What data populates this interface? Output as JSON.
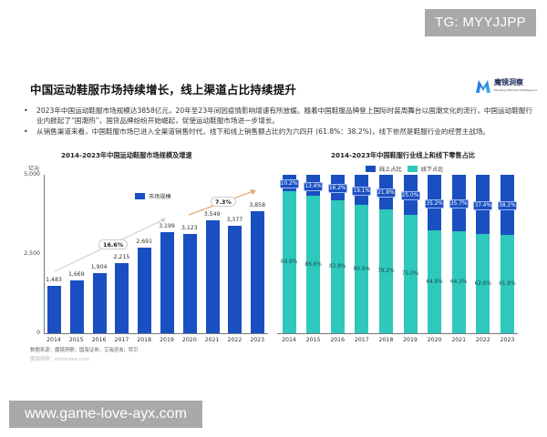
{
  "watermarks": {
    "top": "TG: MYYJJPP",
    "bottom": "www.game-love-ayx.com"
  },
  "header": {
    "title": "中国运动鞋服市场持续增长，线上渠道占比持续提升",
    "logo_text": "魔镜洞察",
    "logo_subtext": "Moojing Market Intelligence",
    "logo_icon": "m-logo-icon"
  },
  "bullets": [
    "2023年中国运动鞋服市场规模达3858亿元，20年至23年间因疫情影响增速有所放缓。随着中国鞋服品牌登上国际时装周舞台以国潮文化的流行，中国运动鞋服行业内掀起了“国潮热”，国货品牌纷纷开始崛起，促使运动鞋服市场进一步增长。",
    "从销售渠道来看，中国鞋服市场已进入全渠道销售时代，线下和线上销售额占比约为六四开 (61.8%：38.2%)，线下依然是鞋服行业的经营主战场。"
  ],
  "colors": {
    "online": "#1a4fc2",
    "offline": "#2ec8bc",
    "market": "#1a4fc2",
    "arrow1": "#d0d0d0",
    "arrow2": "#e8a870"
  },
  "chart_data": [
    {
      "type": "bar",
      "title": "2014-2023年中国运动鞋服市场规模及增速",
      "ylabel": "亿元",
      "xlabel": "",
      "ylim": [
        0,
        5000
      ],
      "yticks": [
        "0",
        "2,500",
        "5,000"
      ],
      "categories": [
        "2014",
        "2015",
        "2016",
        "2017",
        "2018",
        "2019",
        "2020",
        "2021",
        "2022",
        "2023"
      ],
      "series": [
        {
          "name": "市场规模",
          "values": [
            1483,
            1669,
            1904,
            2215,
            2691,
            3199,
            3123,
            3549,
            3377,
            3858
          ]
        }
      ],
      "value_labels": [
        "1,483",
        "1,669",
        "1,904",
        "2,215",
        "2,691",
        "3,199",
        "3,123",
        "3,549",
        "3,377",
        "3,858"
      ],
      "annotations": [
        {
          "text": "16.6%",
          "span": "2014-2019",
          "meaning": "CAGR"
        },
        {
          "text": "7.3%",
          "span": "2020-2023",
          "meaning": "CAGR"
        }
      ],
      "legend_position": "top-center",
      "grid": false,
      "source": "数据来源：魔镜洞察；国海证券；艾瑞咨询；转引",
      "source2": "魔镜洞察：mktindex.com"
    },
    {
      "type": "bar",
      "stacked": true,
      "title": "2014-2023年中国鞋服行业线上和线下零售占比",
      "categories": [
        "2014",
        "2015",
        "2016",
        "2017",
        "2018",
        "2019",
        "2020",
        "2021",
        "2022",
        "2023"
      ],
      "series": [
        {
          "name": "线上占比",
          "values": [
            10.2,
            13.4,
            16.2,
            19.1,
            21.8,
            25.0,
            35.2,
            35.7,
            37.4,
            38.2
          ]
        },
        {
          "name": "线下占比",
          "values": [
            89.8,
            86.6,
            83.8,
            80.9,
            78.2,
            75.0,
            64.8,
            64.3,
            62.6,
            61.8
          ]
        }
      ],
      "ylim": [
        0,
        100
      ],
      "legend_position": "top-center",
      "grid": false
    }
  ]
}
